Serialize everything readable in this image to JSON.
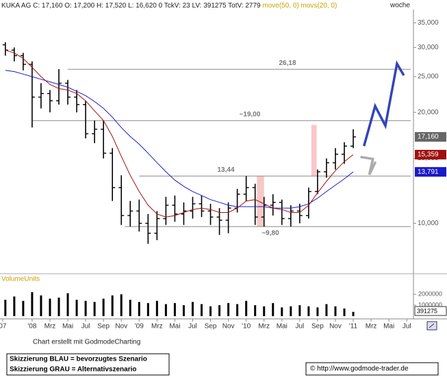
{
  "header": {
    "info": "C: 17,160 O: 17,200 H: 17,520 L: 16,620 0 TckV: 23 LV: 391275 TotV: 2779",
    "period": "woche"
  },
  "chart_data": [
    {
      "type": "ohlc",
      "log_scale": true,
      "xlim": [
        -3.6,
        42.75
      ],
      "ylim": [
        7.3,
        39.5
      ],
      "xticks": [
        {
          "value": -3.3,
          "label": "07"
        },
        {
          "value": 0,
          "label": "'08"
        },
        {
          "value": 2,
          "label": "Mrz"
        },
        {
          "value": 4,
          "label": "Mai"
        },
        {
          "value": 6,
          "label": "Jul"
        },
        {
          "value": 8,
          "label": "Sep"
        },
        {
          "value": 10,
          "label": "Nov"
        },
        {
          "value": 12,
          "label": "'09"
        },
        {
          "value": 14,
          "label": "Mrz"
        },
        {
          "value": 16,
          "label": "Mai"
        },
        {
          "value": 18,
          "label": "Jul"
        },
        {
          "value": 20,
          "label": "Sep"
        },
        {
          "value": 22,
          "label": "Nov"
        },
        {
          "value": 24,
          "label": "'10"
        },
        {
          "value": 26,
          "label": "Mrz"
        },
        {
          "value": 28,
          "label": "Mai"
        },
        {
          "value": 30,
          "label": "Jul"
        },
        {
          "value": 32,
          "label": "Sep"
        },
        {
          "value": 34,
          "label": "Nov"
        },
        {
          "value": 36,
          "label": "'11"
        },
        {
          "value": 38,
          "label": "Mrz"
        },
        {
          "value": 40,
          "label": "Mai"
        },
        {
          "value": 42,
          "label": "Jul"
        }
      ],
      "yticks": [
        {
          "value": 10,
          "label": "10,000"
        },
        {
          "value": 15,
          "label": "15,000"
        },
        {
          "value": 20,
          "label": "20,000"
        },
        {
          "value": 25,
          "label": "25,000"
        },
        {
          "value": 30,
          "label": "30,000"
        },
        {
          "value": 35,
          "label": "35,000"
        }
      ],
      "x": [
        -3,
        -2,
        -1,
        0,
        1,
        2,
        3,
        4,
        5,
        6,
        7,
        8,
        9,
        10,
        11,
        12,
        13,
        14,
        15,
        16,
        17,
        18,
        19,
        20,
        21,
        22,
        23,
        24,
        25,
        26,
        27,
        28,
        29,
        30,
        31,
        32,
        33,
        34,
        35,
        36
      ],
      "series": [
        {
          "name": "KUKA AG",
          "color": "#000000",
          "label_color": "#666666",
          "last_label": "17,160",
          "open": [
            30.5,
            29.5,
            28.5,
            27,
            22,
            22.5,
            21.5,
            24,
            22,
            21,
            17.5,
            18,
            15.5,
            12.5,
            10.5,
            10.8,
            10,
            9.4,
            10.3,
            11.2,
            10.6,
            10.8,
            11.3,
            10.8,
            10.4,
            10.2,
            11,
            12,
            12.5,
            10.4,
            11.2,
            11.4,
            10.3,
            10.8,
            10.5,
            12.2,
            13.8,
            14.6,
            15.4,
            16.2
          ],
          "high": [
            31,
            30,
            29,
            27.5,
            24,
            23,
            26.2,
            24.5,
            23,
            21.5,
            19,
            19,
            16,
            13.5,
            11.5,
            11.6,
            10.6,
            10.8,
            11.8,
            11.9,
            11.4,
            11.8,
            11.9,
            11.3,
            11,
            11.4,
            12.4,
            13.44,
            12.8,
            11.8,
            12,
            11.6,
            11.2,
            11.3,
            12.5,
            14,
            15,
            16,
            16.6,
            18
          ],
          "low": [
            28.5,
            27.5,
            26,
            18.2,
            20.5,
            20,
            21,
            21,
            20,
            17,
            16.5,
            15,
            11.5,
            9.9,
            9.8,
            9.5,
            8.8,
            9,
            9.9,
            10.1,
            9.9,
            10.3,
            10.4,
            9.9,
            9.3,
            9.4,
            10.7,
            11.5,
            9.9,
            9.8,
            10.5,
            9.9,
            9.8,
            10,
            10.3,
            12,
            13.3,
            14,
            14.5,
            16
          ],
          "close": [
            29.5,
            28.5,
            27,
            22,
            22.5,
            21.5,
            24,
            22,
            21,
            17.5,
            18,
            15.5,
            12.5,
            10.5,
            10.8,
            10,
            9.4,
            10.3,
            11.2,
            10.6,
            10.8,
            11.3,
            10.8,
            10.4,
            10.2,
            11,
            12,
            12.5,
            10.4,
            11.2,
            11.4,
            10.3,
            10.8,
            10.5,
            12.2,
            13.8,
            14.6,
            15.4,
            16.2,
            17.16
          ]
        },
        {
          "name": "move(50, 0)",
          "color": "#1a1ac8",
          "last_label": "13,791",
          "values": [
            26,
            25.8,
            25.4,
            25,
            24.6,
            24.2,
            23.8,
            23.4,
            22.8,
            22.2,
            21.4,
            20.5,
            19.4,
            18.2,
            17.2,
            16.4,
            15.5,
            14.6,
            13.8,
            13.1,
            12.6,
            12.2,
            11.9,
            11.6,
            11.4,
            11.2,
            11.1,
            11.1,
            11.1,
            11.1,
            11.0,
            11.0,
            11.0,
            11.1,
            11.3,
            11.7,
            12.2,
            12.7,
            13.2,
            13.791
          ]
        },
        {
          "name": "movs(20, 0)",
          "color": "#a01010",
          "last_label": "15,359",
          "values": [
            29.5,
            29,
            28,
            26.5,
            25,
            23.8,
            23.2,
            23,
            22.5,
            21.5,
            20.2,
            19,
            17.2,
            15.2,
            13.5,
            12.2,
            11.2,
            10.6,
            10.4,
            10.5,
            10.7,
            10.9,
            11,
            10.9,
            10.7,
            10.7,
            11,
            11.5,
            11.6,
            11.3,
            11,
            10.9,
            10.7,
            10.7,
            11.2,
            12.1,
            13,
            13.9,
            14.7,
            15.359
          ]
        }
      ],
      "levels": [
        {
          "value": 26.18,
          "label": "26,18",
          "x0": 4
        },
        {
          "value": 19.0,
          "label": "~19,00",
          "x0": 0
        },
        {
          "value": 13.44,
          "label": "13,44",
          "x0": 12
        },
        {
          "value": 9.8,
          "label": "~9,80",
          "x0": 10.4
        }
      ],
      "highlights": [
        {
          "x": [
            25.2,
            26.0
          ],
          "y": [
            9.8,
            13.44
          ],
          "color": "#f8c8c8"
        },
        {
          "x": [
            31.3,
            31.9
          ],
          "y": [
            13.44,
            18.5
          ],
          "color": "#f8c8c8"
        }
      ],
      "scenarios": [
        {
          "color": "#3344bb",
          "x": [
            37.2,
            38.45,
            39.6,
            40.9,
            41.67
          ],
          "values": [
            16.2,
            20.8,
            18.4,
            27.1,
            25.2
          ]
        },
        {
          "color": "#aaaaaa",
          "x": [
            36.8,
            38.2,
            37.8,
            38.5
          ],
          "values": [
            15.14,
            14.95,
            13.55,
            14.69
          ]
        }
      ]
    },
    {
      "type": "bar",
      "title": "VolumeUnits",
      "color": "#000000",
      "xlim": [
        -3.6,
        42.75
      ],
      "ylim": [
        0,
        3700000
      ],
      "yticks": [
        1000000,
        2000000
      ],
      "x": [
        -3,
        -2,
        -1,
        0,
        1,
        2,
        3,
        4,
        5,
        6,
        7,
        8,
        9,
        10,
        11,
        12,
        13,
        14,
        15,
        16,
        17,
        18,
        19,
        20,
        21,
        22,
        23,
        24,
        25,
        26,
        27,
        28,
        29,
        30,
        31,
        32,
        33,
        34,
        35,
        36
      ],
      "values": [
        1500000,
        1800000,
        1400000,
        2200000,
        1900000,
        1600000,
        1700000,
        2100000,
        1500000,
        1400000,
        1300000,
        1600000,
        1900000,
        2000000,
        1500000,
        1300000,
        1200000,
        1400000,
        1100000,
        1200000,
        1000000,
        1300000,
        1100000,
        900000,
        1000000,
        1200000,
        1100000,
        1400000,
        1000000,
        900000,
        1200000,
        800000,
        900000,
        1000000,
        900000,
        800000,
        1100000,
        900000,
        700000,
        391275
      ]
    }
  ],
  "footer": {
    "credit": "Chart erstellt mit GodmodeCharting",
    "legend": [
      "Skizzierung BLAU = bevorzugtes Szenario",
      "Skizzierung GRAU = Alternativszenario"
    ],
    "url": "© http://www.godmode-trader.de"
  }
}
